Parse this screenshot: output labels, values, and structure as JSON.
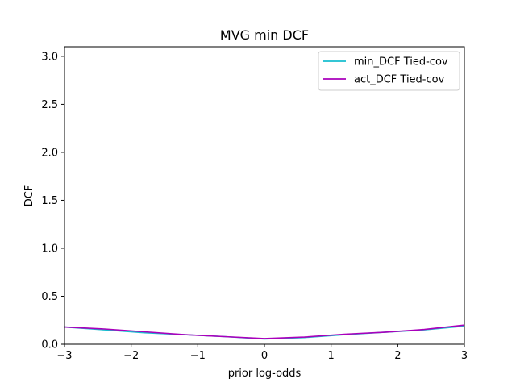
{
  "chart_data": {
    "type": "line",
    "title": "MVG min DCF",
    "xlabel": "prior log-odds",
    "ylabel": "DCF",
    "xlim": [
      -3,
      3
    ],
    "ylim": [
      0,
      3.1
    ],
    "xticks": [
      -3,
      -2,
      -1,
      0,
      1,
      2,
      3
    ],
    "xtick_labels": [
      "−3",
      "−2",
      "−1",
      "0",
      "1",
      "2",
      "3"
    ],
    "yticks": [
      0,
      0.5,
      1.0,
      1.5,
      2.0,
      2.5,
      3.0
    ],
    "ytick_labels": [
      "0.0",
      "0.5",
      "1.0",
      "1.5",
      "2.0",
      "2.5",
      "3.0"
    ],
    "grid": false,
    "legend_position": "top-right",
    "series": [
      {
        "name": "min_DCF Tied-cov",
        "color": "#17becf",
        "x": [
          -3.0,
          -2.4,
          -1.8,
          -1.2,
          -0.6,
          0.0,
          0.6,
          1.2,
          1.8,
          2.4,
          3.0
        ],
        "y": [
          0.18,
          0.15,
          0.12,
          0.1,
          0.08,
          0.055,
          0.07,
          0.1,
          0.125,
          0.15,
          0.19
        ]
      },
      {
        "name": "act_DCF Tied-cov",
        "color": "#aa00bb",
        "x": [
          -3.0,
          -2.4,
          -1.8,
          -1.2,
          -0.6,
          0.0,
          0.6,
          1.2,
          1.8,
          2.4,
          3.0
        ],
        "y": [
          0.18,
          0.16,
          0.13,
          0.1,
          0.08,
          0.06,
          0.075,
          0.105,
          0.125,
          0.155,
          0.2
        ]
      }
    ]
  }
}
